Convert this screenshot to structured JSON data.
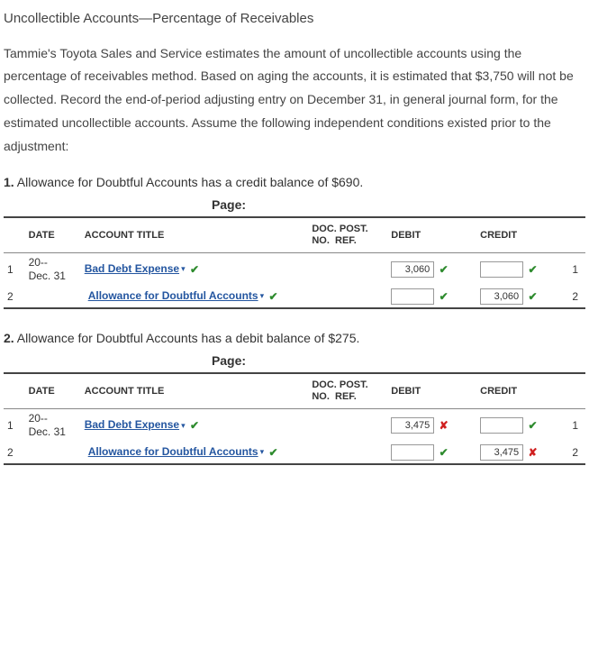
{
  "title": "Uncollectible Accounts—Percentage of Receivables",
  "body": "Tammie's Toyota Sales and Service estimates the amount of uncollectible accounts using the percentage of receivables method. Based on aging the accounts, it is estimated that $3,750 will not be collected. Record the end-of-period adjusting entry on December 31, in general journal form, for the estimated uncollectible accounts. Assume the following independent conditions existed prior to the adjustment:",
  "page_label": "Page:",
  "headers": {
    "date": "DATE",
    "account": "ACCOUNT TITLE",
    "post": "DOC. POST.\nNO.  REF.",
    "debit": "DEBIT",
    "credit": "CREDIT"
  },
  "colors": {
    "link": "#2456a0",
    "correct": "#2e8b2e",
    "wrong": "#d02020",
    "border": "#444"
  },
  "scenarios": [
    {
      "num": "1.",
      "text": " Allowance for Doubtful Accounts has a credit balance of $690.",
      "rows": [
        {
          "rownum": "1",
          "date_top": "20--",
          "date_bot": "Dec. 31",
          "account": "Bad Debt Expense",
          "account_mark": "correct",
          "indent": false,
          "debit": "3,060",
          "debit_mark": "correct",
          "credit": "",
          "credit_mark": "correct",
          "trail": "1"
        },
        {
          "rownum": "2",
          "date_top": "",
          "date_bot": "",
          "account": "Allowance for Doubtful Accounts",
          "account_mark": "correct",
          "indent": true,
          "debit": "",
          "debit_mark": "correct",
          "credit": "3,060",
          "credit_mark": "correct",
          "trail": "2"
        }
      ]
    },
    {
      "num": "2.",
      "text": " Allowance for Doubtful Accounts has a debit balance of $275.",
      "rows": [
        {
          "rownum": "1",
          "date_top": "20--",
          "date_bot": "Dec. 31",
          "account": "Bad Debt Expense",
          "account_mark": "correct",
          "indent": false,
          "debit": "3,475",
          "debit_mark": "wrong",
          "credit": "",
          "credit_mark": "correct",
          "trail": "1"
        },
        {
          "rownum": "2",
          "date_top": "",
          "date_bot": "",
          "account": "Allowance for Doubtful Accounts",
          "account_mark": "correct",
          "indent": true,
          "debit": "",
          "debit_mark": "correct",
          "credit": "3,475",
          "credit_mark": "wrong",
          "trail": "2"
        }
      ]
    }
  ]
}
